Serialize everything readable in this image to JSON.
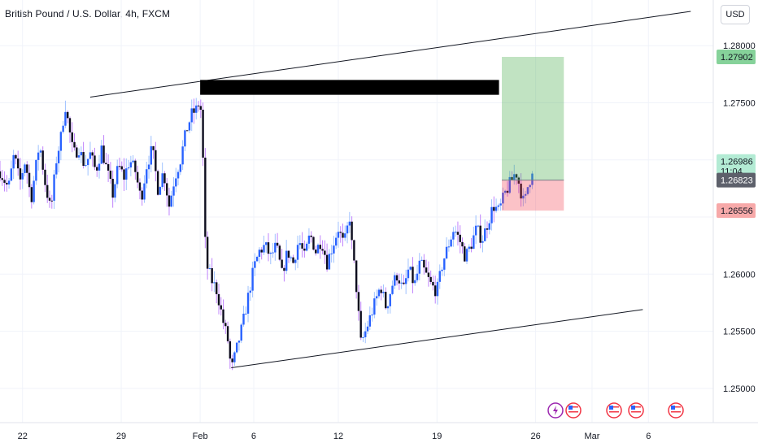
{
  "header": {
    "symbol_title": "British Pound / U.S. Dollar, 4h, FXCM",
    "currency_label": "USD"
  },
  "chart_data": {
    "type": "candlestick",
    "title": "British Pound / U.S. Dollar, 4h, FXCM",
    "ylim": [
      1.247,
      1.284
    ],
    "y_ticks": [
      1.25,
      1.255,
      1.26,
      1.265,
      1.27,
      1.275,
      1.28
    ],
    "y_tick_labels": [
      "1.25000",
      "1.25500",
      "1.26000",
      "",
      "",
      "1.27500",
      "1.28000"
    ],
    "x_tick_labels": [
      {
        "label": "22",
        "x": 0
      },
      {
        "label": "29",
        "x": 35
      },
      {
        "label": "Feb",
        "x": 63
      },
      {
        "label": "6",
        "x": 82
      },
      {
        "label": "12",
        "x": 112
      },
      {
        "label": "19",
        "x": 147
      },
      {
        "label": "26",
        "x": 182
      },
      {
        "label": "Mar",
        "x": 202
      },
      {
        "label": "6",
        "x": 222
      }
    ],
    "x_range": [
      -8,
      245
    ],
    "candles_anchor_path": [
      [
        -8,
        1.269
      ],
      [
        -5,
        1.2675
      ],
      [
        -3,
        1.2705
      ],
      [
        -1,
        1.268
      ],
      [
        1,
        1.27
      ],
      [
        3,
        1.2665
      ],
      [
        6,
        1.2715
      ],
      [
        8,
        1.268
      ],
      [
        10,
        1.2655
      ],
      [
        12,
        1.27
      ],
      [
        14,
        1.2725
      ],
      [
        15,
        1.275
      ],
      [
        16,
        1.2735
      ],
      [
        18,
        1.2705
      ],
      [
        20,
        1.271
      ],
      [
        22,
        1.2695
      ],
      [
        24,
        1.2705
      ],
      [
        26,
        1.269
      ],
      [
        28,
        1.271
      ],
      [
        30,
        1.269
      ],
      [
        32,
        1.267
      ],
      [
        34,
        1.2695
      ],
      [
        36,
        1.2685
      ],
      [
        38,
        1.27
      ],
      [
        40,
        1.269
      ],
      [
        42,
        1.2665
      ],
      [
        44,
        1.2695
      ],
      [
        46,
        1.271
      ],
      [
        48,
        1.2675
      ],
      [
        50,
        1.269
      ],
      [
        52,
        1.266
      ],
      [
        54,
        1.2685
      ],
      [
        56,
        1.27
      ],
      [
        58,
        1.2725
      ],
      [
        60,
        1.274
      ],
      [
        62,
        1.2745
      ],
      [
        63,
        1.2755
      ],
      [
        64,
        1.27
      ],
      [
        65,
        1.261
      ],
      [
        67,
        1.2595
      ],
      [
        69,
        1.2585
      ],
      [
        71,
        1.256
      ],
      [
        73,
        1.254
      ],
      [
        74,
        1.2515
      ],
      [
        75,
        1.2525
      ],
      [
        76,
        1.2535
      ],
      [
        78,
        1.2555
      ],
      [
        80,
        1.258
      ],
      [
        82,
        1.2605
      ],
      [
        84,
        1.262
      ],
      [
        86,
        1.2625
      ],
      [
        88,
        1.2615
      ],
      [
        90,
        1.2625
      ],
      [
        92,
        1.26
      ],
      [
        94,
        1.262
      ],
      [
        96,
        1.261
      ],
      [
        98,
        1.263
      ],
      [
        100,
        1.2615
      ],
      [
        102,
        1.2635
      ],
      [
        104,
        1.262
      ],
      [
        106,
        1.263
      ],
      [
        108,
        1.261
      ],
      [
        110,
        1.2625
      ],
      [
        112,
        1.264
      ],
      [
        114,
        1.2625
      ],
      [
        116,
        1.265
      ],
      [
        117,
        1.262
      ],
      [
        118,
        1.26
      ],
      [
        119,
        1.257
      ],
      [
        120,
        1.254
      ],
      [
        121,
        1.2545
      ],
      [
        123,
        1.256
      ],
      [
        125,
        1.2575
      ],
      [
        127,
        1.259
      ],
      [
        129,
        1.257
      ],
      [
        131,
        1.259
      ],
      [
        133,
        1.26
      ],
      [
        135,
        1.2585
      ],
      [
        137,
        1.2605
      ],
      [
        139,
        1.259
      ],
      [
        141,
        1.261
      ],
      [
        143,
        1.26
      ],
      [
        145,
        1.259
      ],
      [
        147,
        1.2585
      ],
      [
        149,
        1.261
      ],
      [
        151,
        1.2625
      ],
      [
        153,
        1.264
      ],
      [
        155,
        1.263
      ],
      [
        157,
        1.2615
      ],
      [
        159,
        1.2625
      ],
      [
        161,
        1.264
      ],
      [
        163,
        1.263
      ],
      [
        165,
        1.2645
      ],
      [
        167,
        1.266
      ],
      [
        169,
        1.2655
      ],
      [
        171,
        1.267
      ],
      [
        173,
        1.268
      ],
      [
        175,
        1.269
      ],
      [
        177,
        1.267
      ],
      [
        178,
        1.266
      ],
      [
        179,
        1.2675
      ],
      [
        180,
        1.2683
      ],
      [
        181,
        1.2695
      ]
    ],
    "overlays": {
      "upper_trendline": {
        "x1": 24,
        "y1": 1.2755,
        "x2": 237,
        "y2": 1.283
      },
      "lower_trendline": {
        "x1": 74,
        "y1": 1.2518,
        "x2": 220,
        "y2": 1.2569
      },
      "resistance_zone": {
        "x1": 63,
        "x2": 169,
        "y_top": 1.277,
        "y_bottom": 1.2757
      },
      "long_position": {
        "x1": 170,
        "x2": 192,
        "entry": 1.26823,
        "target": 1.27902,
        "stop": 1.26556
      }
    },
    "price_labels": [
      {
        "value": 1.27902,
        "text": "1.27902",
        "bg": "#86d29a",
        "fg": "#131722"
      },
      {
        "value": 1.26986,
        "text": "1.26986",
        "sub": "11:04",
        "bg": "#b3ebd4",
        "fg": "#131722"
      },
      {
        "value": 1.26823,
        "text": "1.26823",
        "bg": "#5d606b",
        "fg": "#ffffff"
      },
      {
        "value": 1.26556,
        "text": "1.26556",
        "bg": "#f7a9a9",
        "fg": "#131722"
      }
    ],
    "event_icons": [
      "lightning-icon",
      "us-flag-icon",
      "us-flag-icon",
      "us-flag-icon",
      "us-flag-icon"
    ],
    "colors": {
      "up_candle": "#2962ff",
      "down_candle": "#0c0c1d",
      "up_wick": "#9fc2ff",
      "down_wick": "#c084fc",
      "grid": "#f0f3fa",
      "target_zone": "rgba(76, 175, 80, 0.35)",
      "stop_zone": "rgba(242, 54, 69, 0.30)"
    }
  }
}
